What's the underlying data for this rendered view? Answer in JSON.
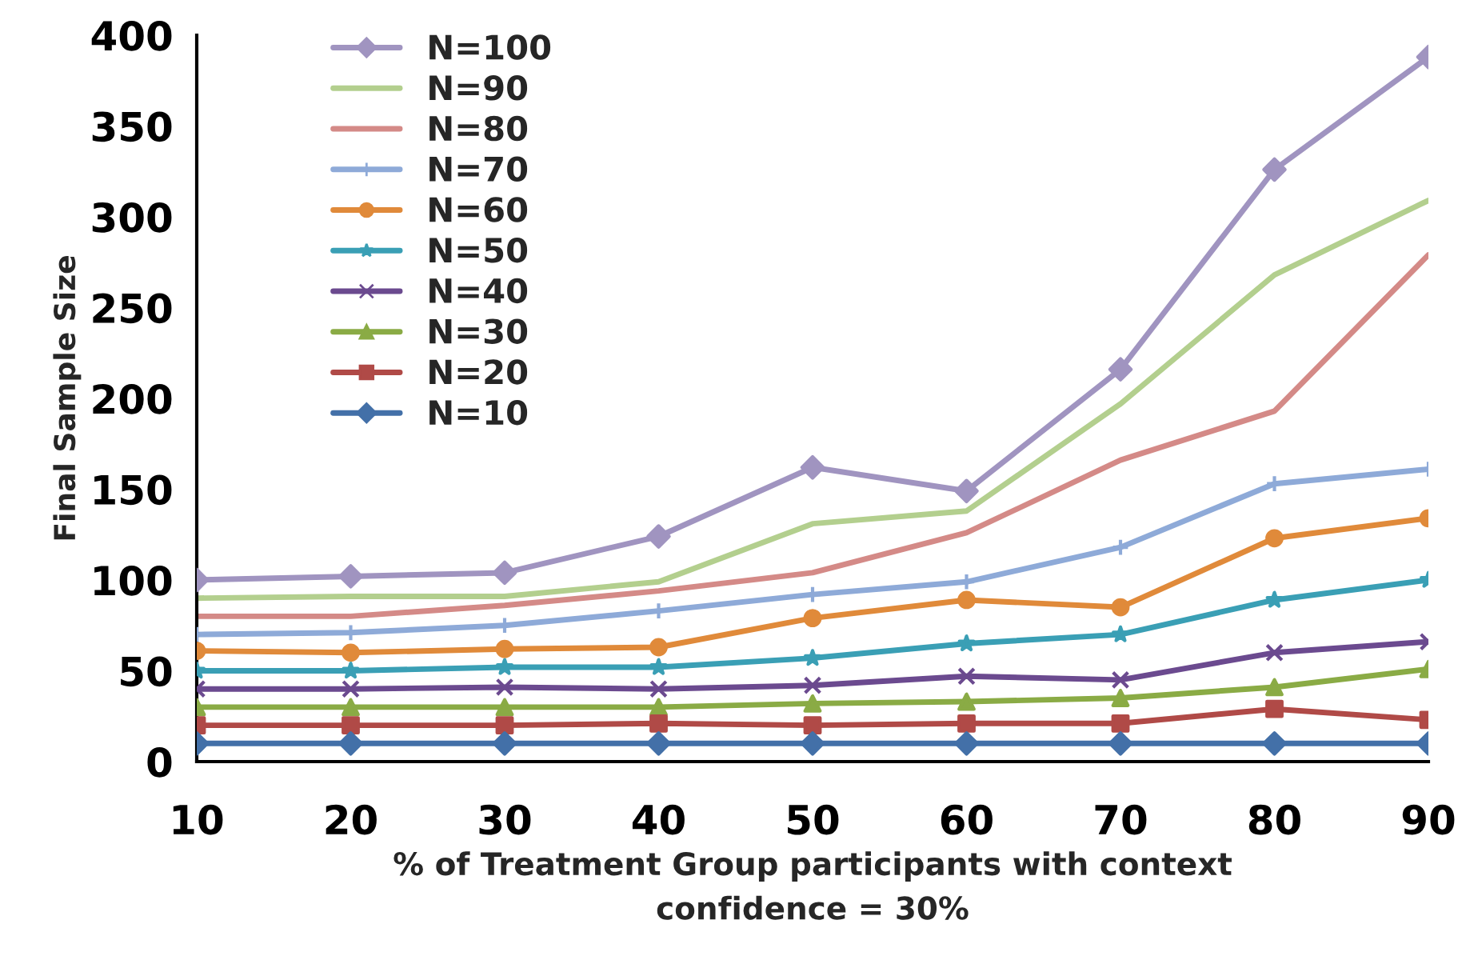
{
  "chart_data": {
    "type": "line",
    "xlabel": "% of Treatment Group participants with context\nconfidence = 30%",
    "ylabel": "Final Sample Size",
    "x": [
      10,
      20,
      30,
      40,
      50,
      60,
      70,
      80,
      90
    ],
    "xlim": [
      10,
      90
    ],
    "xticks": [
      10,
      20,
      30,
      40,
      50,
      60,
      70,
      80,
      90
    ],
    "ylim": [
      0,
      400
    ],
    "yticks": [
      0,
      50,
      100,
      150,
      200,
      250,
      300,
      350,
      400
    ],
    "grid": false,
    "legend": "top left",
    "series": [
      {
        "name": "N=100",
        "color": "#a094c0",
        "marker": "diamond",
        "values": [
          100,
          102,
          104,
          124,
          162,
          149,
          216,
          326,
          388
        ]
      },
      {
        "name": "N=90",
        "color": "#b3cf8e",
        "marker": "none",
        "values": [
          90,
          91,
          91,
          99,
          131,
          138,
          197,
          268,
          309
        ]
      },
      {
        "name": "N=80",
        "color": "#d48a87",
        "marker": "none",
        "values": [
          80,
          80,
          86,
          94,
          104,
          126,
          166,
          193,
          279
        ]
      },
      {
        "name": "N=70",
        "color": "#8eaad8",
        "marker": "plus",
        "values": [
          70,
          71,
          75,
          83,
          92,
          99,
          118,
          153,
          161
        ]
      },
      {
        "name": "N=60",
        "color": "#e08a3a",
        "marker": "circle",
        "values": [
          61,
          60,
          62,
          63,
          79,
          89,
          85,
          123,
          134
        ]
      },
      {
        "name": "N=50",
        "color": "#3a9fb5",
        "marker": "star",
        "values": [
          50,
          50,
          52,
          52,
          57,
          65,
          70,
          89,
          100
        ]
      },
      {
        "name": "N=40",
        "color": "#6b4a8f",
        "marker": "cross",
        "values": [
          40,
          40,
          41,
          40,
          42,
          47,
          45,
          60,
          66
        ]
      },
      {
        "name": "N=30",
        "color": "#8aab45",
        "marker": "triangle",
        "values": [
          30,
          30,
          30,
          30,
          32,
          33,
          35,
          41,
          51
        ]
      },
      {
        "name": "N=20",
        "color": "#b04a47",
        "marker": "square",
        "values": [
          20,
          20,
          20,
          21,
          20,
          21,
          21,
          29,
          23
        ]
      },
      {
        "name": "N=10",
        "color": "#4370a8",
        "marker": "diamond",
        "values": [
          10,
          10,
          10,
          10,
          10,
          10,
          10,
          10,
          10
        ]
      }
    ]
  }
}
